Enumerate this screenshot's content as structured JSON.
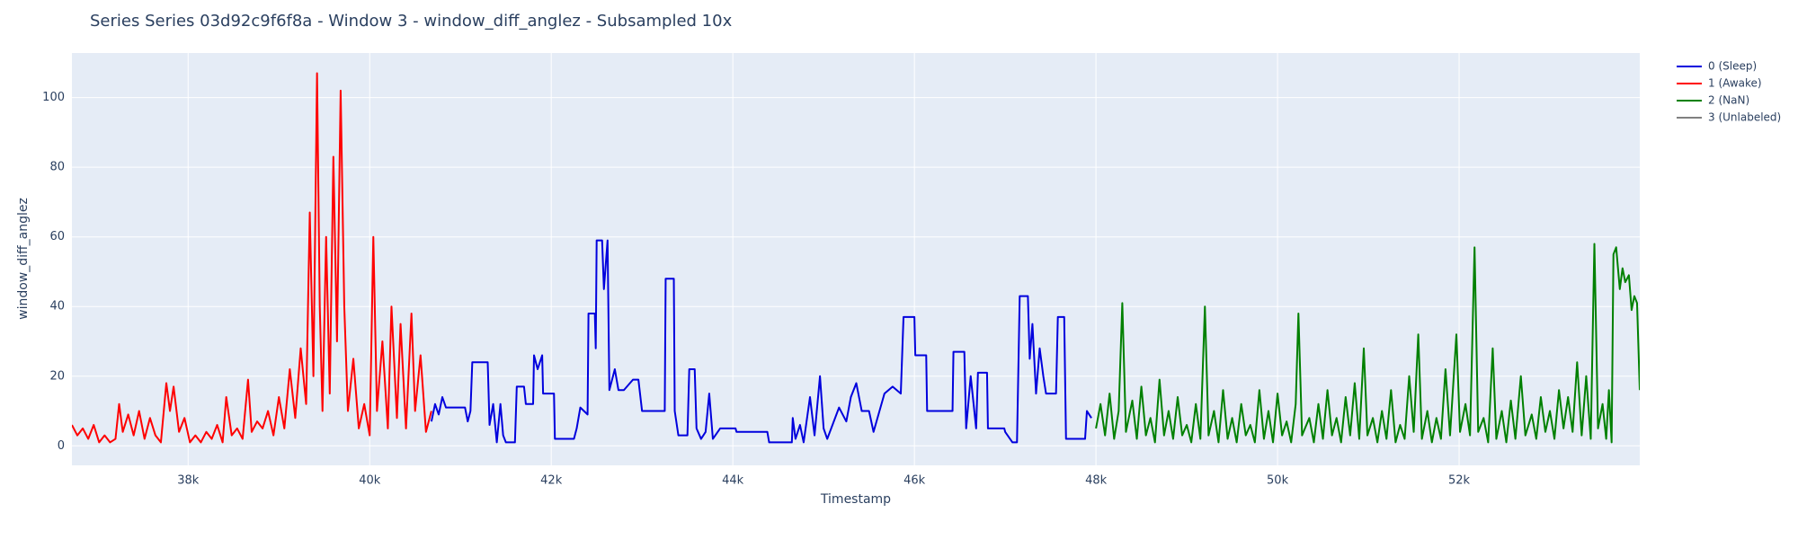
{
  "chart_data": {
    "type": "line",
    "title": "Series Series 03d92c9f6f8a - Window 3 - window_diff_anglez - Subsampled 10x",
    "xlabel": "Timestamp",
    "ylabel": "window_diff_anglez",
    "xlim": [
      36720,
      53990
    ],
    "ylim": [
      -5.6,
      112.8
    ],
    "xticks": [
      {
        "value": 38000,
        "label": "38k"
      },
      {
        "value": 40000,
        "label": "40k"
      },
      {
        "value": 42000,
        "label": "42k"
      },
      {
        "value": 44000,
        "label": "44k"
      },
      {
        "value": 46000,
        "label": "46k"
      },
      {
        "value": 48000,
        "label": "48k"
      },
      {
        "value": 50000,
        "label": "50k"
      },
      {
        "value": 52000,
        "label": "52k"
      }
    ],
    "yticks": [
      0,
      20,
      40,
      60,
      80,
      100
    ],
    "grid": true,
    "legend": "right",
    "series": [
      {
        "name": "0 (Sleep)",
        "color": "#0000dd",
        "x": [
          40680,
          40720,
          40760,
          40800,
          40840,
          40900,
          41050,
          41080,
          41110,
          41130,
          41300,
          41320,
          41360,
          41400,
          41440,
          41470,
          41500,
          41600,
          41620,
          41700,
          41720,
          41800,
          41810,
          41850,
          41900,
          41910,
          42030,
          42040,
          42250,
          42280,
          42320,
          42400,
          42410,
          42480,
          42490,
          42500,
          42560,
          42580,
          42620,
          42640,
          42700,
          42740,
          42800,
          42900,
          42960,
          43000,
          43250,
          43260,
          43350,
          43360,
          43400,
          43500,
          43520,
          43580,
          43600,
          43650,
          43700,
          43740,
          43780,
          43860,
          44030,
          44040,
          44380,
          44400,
          44650,
          44660,
          44690,
          44740,
          44780,
          44850,
          44900,
          44960,
          45000,
          45040,
          45170,
          45250,
          45300,
          45360,
          45420,
          45500,
          45550,
          45670,
          45760,
          45850,
          45880,
          46000,
          46010,
          46130,
          46140,
          46420,
          46430,
          46550,
          46570,
          46620,
          46680,
          46700,
          46800,
          46810,
          46990,
          47000,
          47080,
          47130,
          47160,
          47250,
          47270,
          47300,
          47340,
          47380,
          47420,
          47450,
          47560,
          47580,
          47650,
          47670,
          47880,
          47900,
          47950
        ],
        "values": [
          7,
          12,
          9,
          14,
          11,
          11,
          11,
          7,
          10,
          24,
          24,
          6,
          12,
          1,
          12,
          3,
          1,
          1,
          17,
          17,
          12,
          12,
          26,
          22,
          26,
          15,
          15,
          2,
          2,
          5,
          11,
          9,
          38,
          38,
          28,
          59,
          59,
          45,
          59,
          16,
          22,
          16,
          16,
          19,
          19,
          10,
          10,
          48,
          48,
          10,
          3,
          3,
          22,
          22,
          5,
          2,
          4,
          15,
          2,
          5,
          5,
          4,
          4,
          1,
          1,
          8,
          2,
          6,
          1,
          14,
          3,
          20,
          5,
          2,
          11,
          7,
          14,
          18,
          10,
          10,
          4,
          15,
          17,
          15,
          37,
          37,
          26,
          26,
          10,
          10,
          27,
          27,
          5,
          20,
          5,
          21,
          21,
          5,
          5,
          4,
          1,
          1,
          43,
          43,
          25,
          35,
          15,
          28,
          20,
          15,
          15,
          37,
          37,
          2,
          2,
          10,
          8
        ]
      },
      {
        "name": "1 (Awake)",
        "color": "#ff0000",
        "x": [
          36720,
          36780,
          36840,
          36900,
          36960,
          37020,
          37080,
          37140,
          37200,
          37240,
          37280,
          37340,
          37400,
          37460,
          37520,
          37580,
          37640,
          37700,
          37760,
          37800,
          37840,
          37900,
          37960,
          38020,
          38080,
          38140,
          38200,
          38260,
          38320,
          38380,
          38420,
          38480,
          38540,
          38600,
          38660,
          38700,
          38760,
          38820,
          38880,
          38940,
          39000,
          39060,
          39120,
          39180,
          39240,
          39300,
          39340,
          39380,
          39420,
          39450,
          39480,
          39520,
          39560,
          39600,
          39640,
          39680,
          39720,
          39760,
          39820,
          39880,
          39940,
          40000,
          40040,
          40080,
          40140,
          40200,
          40240,
          40300,
          40340,
          40400,
          40460,
          40500,
          40560,
          40620,
          40680
        ],
        "values": [
          6,
          3,
          5,
          2,
          6,
          1,
          3,
          1,
          2,
          12,
          4,
          9,
          3,
          10,
          2,
          8,
          3,
          1,
          18,
          10,
          17,
          4,
          8,
          1,
          3,
          1,
          4,
          2,
          6,
          1,
          14,
          3,
          5,
          2,
          19,
          4,
          7,
          5,
          10,
          3,
          14,
          5,
          22,
          8,
          28,
          12,
          67,
          20,
          107,
          40,
          10,
          60,
          15,
          83,
          30,
          102,
          40,
          10,
          25,
          5,
          12,
          3,
          60,
          10,
          30,
          5,
          40,
          8,
          35,
          5,
          38,
          10,
          26,
          4,
          10
        ]
      },
      {
        "name": "2 (NaN)",
        "color": "#008000",
        "x": [
          48000,
          48050,
          48100,
          48150,
          48200,
          48250,
          48290,
          48330,
          48400,
          48450,
          48500,
          48550,
          48600,
          48650,
          48700,
          48750,
          48800,
          48850,
          48900,
          48950,
          49000,
          49050,
          49100,
          49150,
          49200,
          49240,
          49300,
          49350,
          49400,
          49450,
          49500,
          49550,
          49600,
          49650,
          49700,
          49750,
          49800,
          49850,
          49900,
          49950,
          50000,
          50050,
          50100,
          50150,
          50200,
          50230,
          50270,
          50350,
          50400,
          50450,
          50500,
          50550,
          50600,
          50650,
          50700,
          50750,
          50800,
          50850,
          50900,
          50950,
          50990,
          51050,
          51100,
          51150,
          51200,
          51250,
          51300,
          51350,
          51400,
          51450,
          51500,
          51550,
          51590,
          51650,
          51700,
          51750,
          51800,
          51850,
          51900,
          51970,
          52010,
          52070,
          52120,
          52170,
          52210,
          52270,
          52320,
          52370,
          52410,
          52470,
          52520,
          52570,
          52620,
          52680,
          52730,
          52800,
          52850,
          52900,
          52950,
          53000,
          53050,
          53100,
          53150,
          53200,
          53250,
          53300,
          53350,
          53400,
          53450,
          53490,
          53530,
          53580,
          53620,
          53650,
          53680,
          53700,
          53730,
          53770,
          53800,
          53830,
          53870,
          53900,
          53930,
          53960,
          53990
        ],
        "values": [
          5,
          12,
          3,
          15,
          2,
          10,
          41,
          4,
          13,
          2,
          17,
          3,
          8,
          1,
          19,
          3,
          10,
          2,
          14,
          3,
          6,
          1,
          12,
          2,
          40,
          3,
          10,
          1,
          16,
          2,
          8,
          1,
          12,
          3,
          6,
          1,
          16,
          2,
          10,
          1,
          15,
          3,
          7,
          1,
          12,
          38,
          3,
          8,
          1,
          12,
          2,
          16,
          3,
          8,
          1,
          14,
          3,
          18,
          2,
          28,
          3,
          8,
          1,
          10,
          2,
          16,
          1,
          6,
          2,
          20,
          4,
          32,
          2,
          10,
          1,
          8,
          2,
          22,
          3,
          32,
          4,
          12,
          3,
          57,
          4,
          8,
          1,
          28,
          2,
          10,
          1,
          13,
          2,
          20,
          3,
          9,
          2,
          14,
          4,
          10,
          2,
          16,
          5,
          14,
          4,
          24,
          3,
          20,
          2,
          58,
          5,
          12,
          2,
          16,
          1,
          55,
          57,
          45,
          51,
          47,
          49,
          39,
          43,
          41,
          16
        ]
      },
      {
        "name": "3 (Unlabeled)",
        "color": "#808080",
        "x": [],
        "values": []
      }
    ]
  }
}
